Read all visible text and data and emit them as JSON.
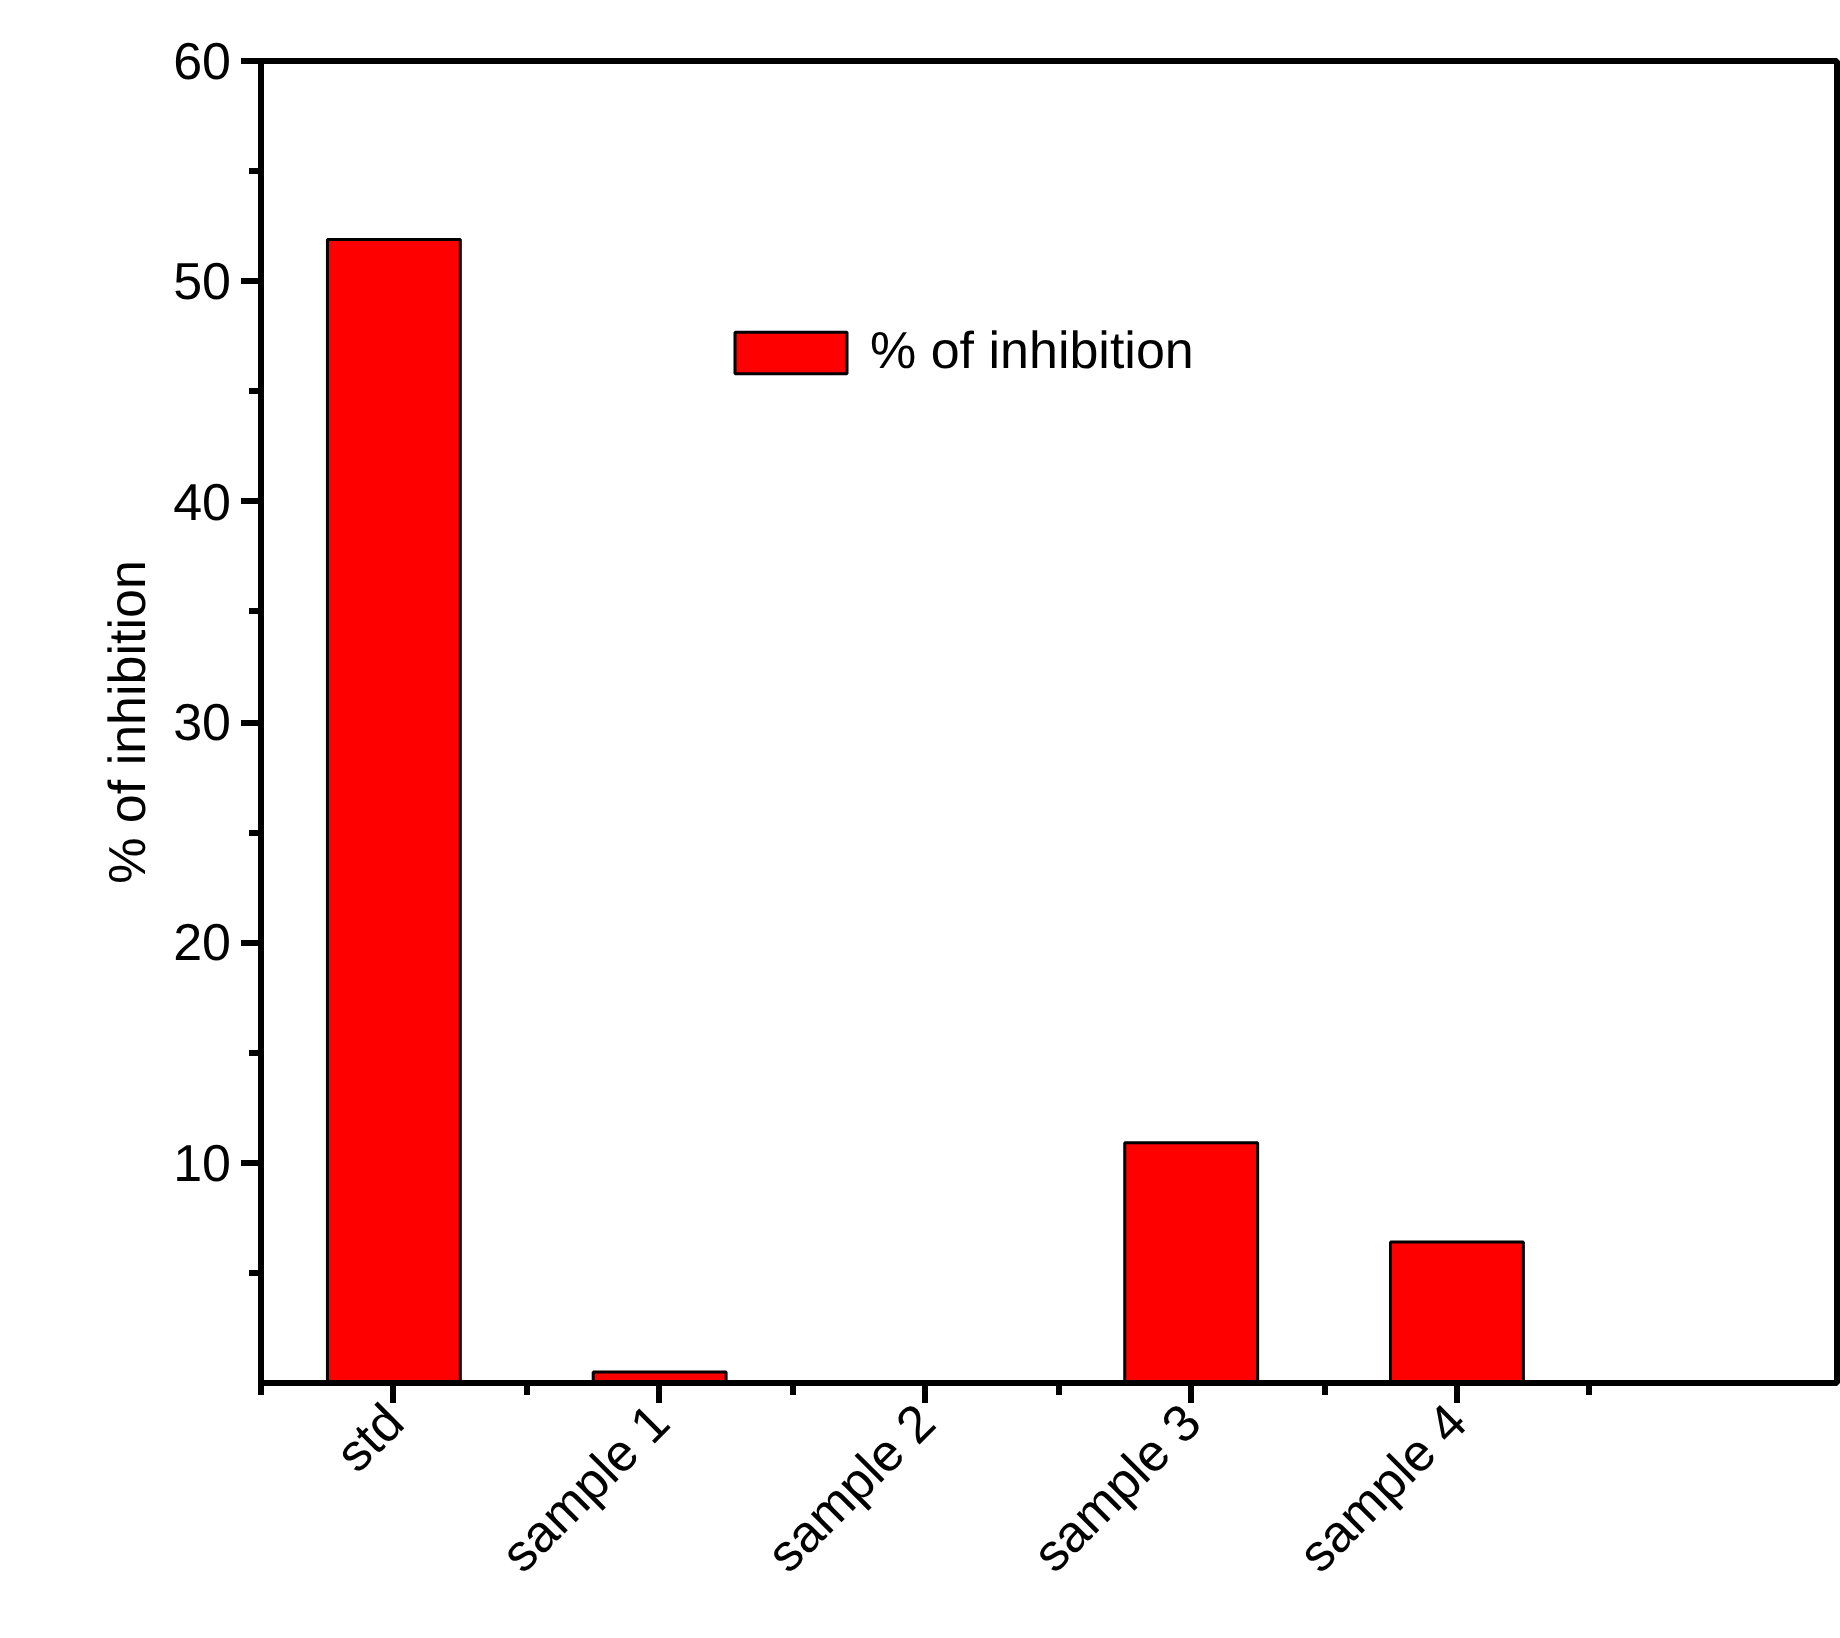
{
  "chart_data": {
    "type": "bar",
    "ylabel": "% of inhibition",
    "categories": [
      "std",
      "sample 1",
      "sample 2",
      "sample 3",
      "sample 4"
    ],
    "series": [
      {
        "name": "% of inhibition",
        "color": "#ff0000",
        "values": [
          51.9,
          0.5,
          null,
          10.9,
          6.4
        ]
      }
    ],
    "ylim": [
      0,
      60
    ],
    "yticks": [
      10,
      20,
      30,
      40,
      50,
      60
    ],
    "legend": "top",
    "grid": false
  }
}
